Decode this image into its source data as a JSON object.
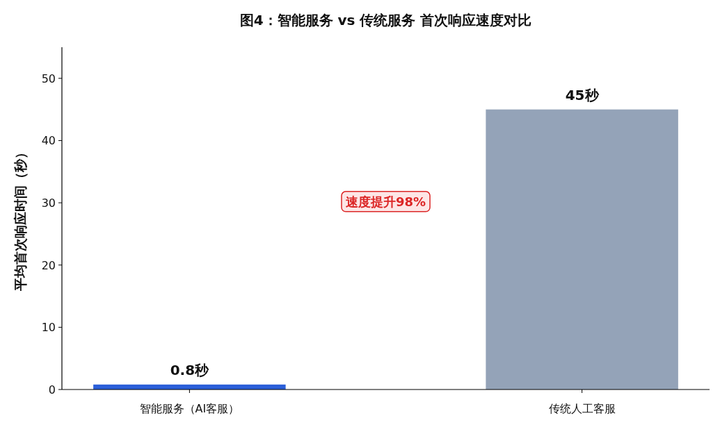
{
  "chart_data": {
    "type": "bar",
    "title": "图4：智能服务 vs 传统服务 首次响应速度对比",
    "ylabel": "平均首次响应时间（秒）",
    "categories": [
      "智能服务（AI客服）",
      "传统人工客服"
    ],
    "values": [
      0.8,
      45
    ],
    "colors": [
      "#2b5fd9",
      "#94a3b8"
    ],
    "value_labels": [
      "0.8秒",
      "45秒"
    ],
    "ylim": [
      0,
      55
    ],
    "yticks": [
      0,
      10,
      20,
      30,
      40,
      50
    ],
    "grid": false,
    "annotations": [
      "速度提升98%"
    ]
  }
}
